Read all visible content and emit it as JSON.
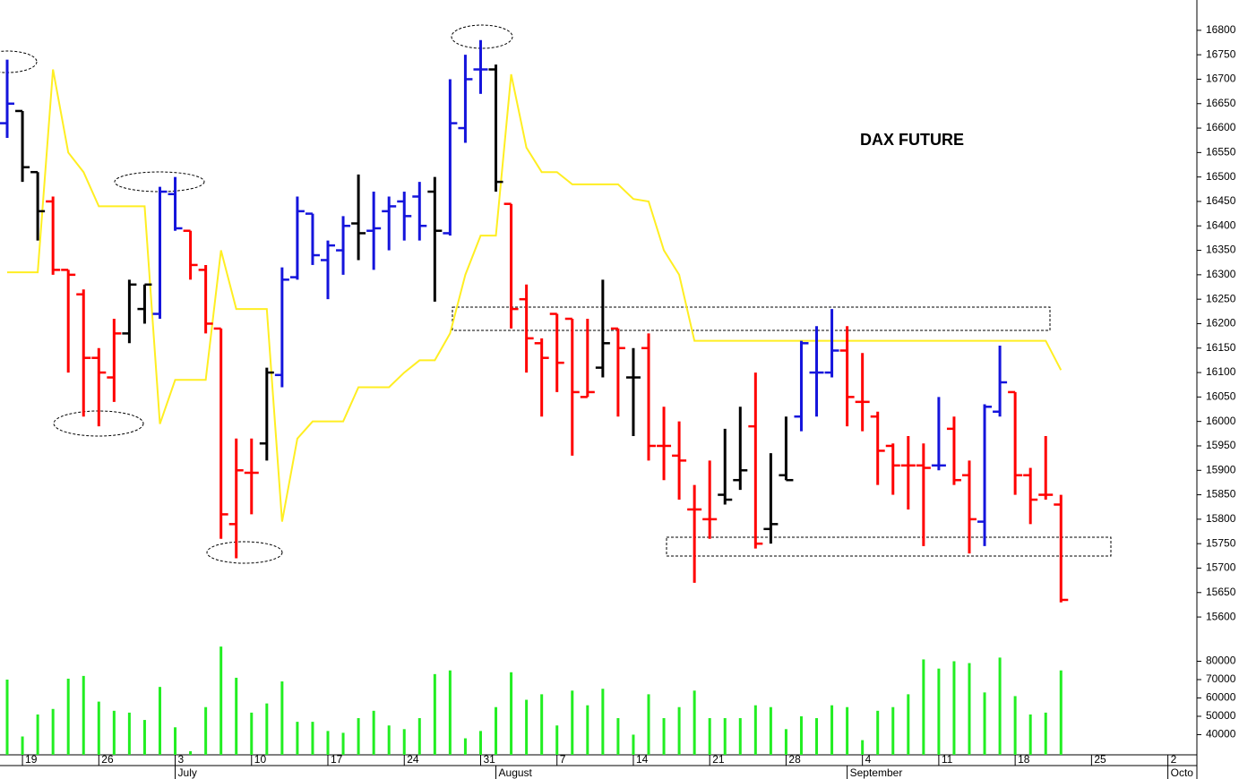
{
  "chart_data": [
    {
      "type": "ohlc",
      "title": "DAX FUTURE",
      "ylim": [
        15580,
        16862
      ],
      "yticks": [
        15600,
        15650,
        15700,
        15750,
        15800,
        15850,
        15900,
        15950,
        16000,
        16050,
        16100,
        16150,
        16200,
        16250,
        16300,
        16350,
        16400,
        16450,
        16500,
        16550,
        16600,
        16650,
        16700,
        16750,
        16800
      ],
      "open": [
        16610,
        16635,
        16510,
        16450,
        16310,
        16260,
        16130,
        16090,
        16180,
        16230,
        16220,
        16465,
        16390,
        16310,
        16190,
        15790,
        15895,
        15955,
        16095,
        16295,
        16425,
        16330,
        16350,
        16405,
        16390,
        16430,
        16450,
        16460,
        16470,
        16385,
        16600,
        16720,
        16720,
        16445,
        16250,
        16160,
        16220,
        16210,
        16050,
        16110,
        16190,
        16090,
        16150,
        15950,
        15930,
        15820,
        15800,
        15850,
        15880,
        15990,
        15780,
        15890,
        16010,
        16100,
        16100,
        16145,
        16040,
        16010,
        15950,
        15910,
        15910,
        15910,
        15985,
        15890,
        15795,
        16020,
        16060,
        15890,
        15850,
        15830
      ],
      "high": [
        16740,
        16635,
        16510,
        16460,
        16310,
        16270,
        16150,
        16210,
        16290,
        16280,
        16480,
        16500,
        16390,
        16320,
        16190,
        15965,
        15965,
        16110,
        16315,
        16460,
        16425,
        16370,
        16420,
        16505,
        16470,
        16460,
        16470,
        16490,
        16500,
        16700,
        16750,
        16780,
        16730,
        16445,
        16280,
        16170,
        16220,
        16210,
        16210,
        16290,
        16190,
        16150,
        16180,
        16030,
        16000,
        15870,
        15920,
        15985,
        16030,
        16100,
        15935,
        16010,
        16165,
        16195,
        16230,
        16195,
        16140,
        16020,
        15955,
        15970,
        15955,
        16050,
        16010,
        15920,
        16035,
        16155,
        16060,
        15905,
        15970,
        15850
      ],
      "low": [
        16580,
        16490,
        16370,
        16300,
        16100,
        16010,
        15990,
        16040,
        16160,
        16200,
        16210,
        16390,
        16290,
        16180,
        15760,
        15720,
        15810,
        15920,
        16070,
        16290,
        16320,
        16250,
        16300,
        16330,
        16310,
        16350,
        16370,
        16370,
        16245,
        16380,
        16570,
        16670,
        16470,
        16190,
        16100,
        16010,
        16060,
        15930,
        16050,
        16090,
        16010,
        15970,
        15920,
        15880,
        15840,
        15670,
        15760,
        15830,
        15860,
        15740,
        15750,
        15880,
        15980,
        16010,
        16090,
        15990,
        15980,
        15870,
        15850,
        15820,
        15745,
        15900,
        15870,
        15730,
        15745,
        16010,
        15850,
        15790,
        15840,
        15630
      ],
      "close": [
        16650,
        16520,
        16430,
        16310,
        16300,
        16130,
        16100,
        16180,
        16280,
        16280,
        16470,
        16395,
        16320,
        16200,
        15810,
        15900,
        15895,
        16100,
        16290,
        16430,
        16340,
        16360,
        16400,
        16385,
        16395,
        16440,
        16420,
        16400,
        16390,
        16610,
        16700,
        16720,
        16490,
        16230,
        16170,
        16130,
        16120,
        16060,
        16060,
        16160,
        16150,
        16090,
        15950,
        15950,
        15920,
        15820,
        15800,
        15840,
        15900,
        15750,
        15790,
        15880,
        16160,
        16100,
        16145,
        16050,
        16040,
        15940,
        15910,
        15910,
        15905,
        15910,
        15880,
        15800,
        16030,
        16080,
        15890,
        15840,
        15850,
        15635
      ],
      "bar_colors": [
        "#1414dc",
        "#000000",
        "#000000",
        "#ff0000",
        "#ff0000",
        "#ff0000",
        "#ff0000",
        "#ff0000",
        "#000000",
        "#000000",
        "#1414dc",
        "#1414dc",
        "#ff0000",
        "#ff0000",
        "#ff0000",
        "#ff0000",
        "#ff0000",
        "#000000",
        "#1414dc",
        "#1414dc",
        "#1414dc",
        "#1414dc",
        "#1414dc",
        "#000000",
        "#1414dc",
        "#1414dc",
        "#1414dc",
        "#1414dc",
        "#000000",
        "#1414dc",
        "#1414dc",
        "#1414dc",
        "#000000",
        "#ff0000",
        "#ff0000",
        "#ff0000",
        "#ff0000",
        "#ff0000",
        "#ff0000",
        "#000000",
        "#ff0000",
        "#000000",
        "#ff0000",
        "#ff0000",
        "#ff0000",
        "#ff0000",
        "#ff0000",
        "#000000",
        "#000000",
        "#ff0000",
        "#000000",
        "#000000",
        "#1414dc",
        "#1414dc",
        "#1414dc",
        "#ff0000",
        "#ff0000",
        "#ff0000",
        "#ff0000",
        "#ff0000",
        "#ff0000",
        "#1414dc",
        "#ff0000",
        "#ff0000",
        "#1414dc",
        "#1414dc",
        "#ff0000",
        "#ff0000",
        "#ff0000",
        "#ff0000"
      ],
      "line_color": "#ffee22",
      "line_values": [
        16305,
        16305,
        16305,
        16720,
        16550,
        16510,
        16440,
        16440,
        16440,
        16440,
        15995,
        16085,
        16085,
        16085,
        16350,
        16230,
        16230,
        16230,
        15795,
        15965,
        16000,
        16000,
        16000,
        16070,
        16070,
        16070,
        16100,
        16125,
        16125,
        16180,
        16300,
        16380,
        16380,
        16710,
        16560,
        16510,
        16510,
        16485,
        16485,
        16485,
        16485,
        16455,
        16450,
        16350,
        16300,
        16165,
        16165,
        16165,
        16165,
        16165,
        16165,
        16165,
        16165,
        16165,
        16165,
        16165,
        16165,
        16165,
        16165,
        16165,
        16165,
        16165,
        16165,
        16165,
        16165,
        16165,
        16165,
        16165,
        16165,
        16105
      ]
    },
    {
      "type": "bar",
      "color": "#22ee22",
      "ylim": [
        29000,
        90000
      ],
      "yticks": [
        40000,
        50000,
        60000,
        70000,
        80000
      ],
      "values": [
        70000,
        39000,
        51000,
        54000,
        70500,
        72000,
        58000,
        53000,
        52000,
        48000,
        66000,
        44000,
        31000,
        55000,
        88000,
        71000,
        52000,
        57000,
        69000,
        47000,
        47000,
        42000,
        41000,
        49000,
        53000,
        45000,
        43000,
        49000,
        73000,
        75000,
        38000,
        42000,
        55000,
        74000,
        59000,
        62000,
        45000,
        64000,
        56000,
        65000,
        49000,
        40000,
        62000,
        49000,
        55000,
        64000,
        49000,
        49000,
        49000,
        56000,
        55000,
        43000,
        50000,
        49000,
        56000,
        55000,
        37000,
        53000,
        55000,
        62000,
        81000,
        76000,
        80000,
        79000,
        63000,
        82000,
        61000,
        51000,
        52000,
        75000
      ],
      "xlim": [
        -0.47,
        77.9
      ],
      "xticks": [
        {
          "value": 1,
          "label": "19"
        },
        {
          "value": 6,
          "label": "26"
        },
        {
          "value": 11,
          "label": "3"
        },
        {
          "value": 16,
          "label": "10"
        },
        {
          "value": 21,
          "label": "17"
        },
        {
          "value": 26,
          "label": "24"
        },
        {
          "value": 31,
          "label": "31"
        },
        {
          "value": 36,
          "label": "7"
        },
        {
          "value": 41,
          "label": "14"
        },
        {
          "value": 46,
          "label": "21"
        },
        {
          "value": 51,
          "label": "28"
        },
        {
          "value": 56,
          "label": "4"
        },
        {
          "value": 61,
          "label": "11"
        },
        {
          "value": 66,
          "label": "18"
        },
        {
          "value": 71,
          "label": "25"
        },
        {
          "value": 76,
          "label": "2"
        }
      ],
      "month_ticks": [
        {
          "value": 11,
          "label": "July"
        },
        {
          "value": 32,
          "label": "August"
        },
        {
          "value": 55,
          "label": "September"
        },
        {
          "value": 76,
          "label": "Octo"
        }
      ]
    }
  ]
}
